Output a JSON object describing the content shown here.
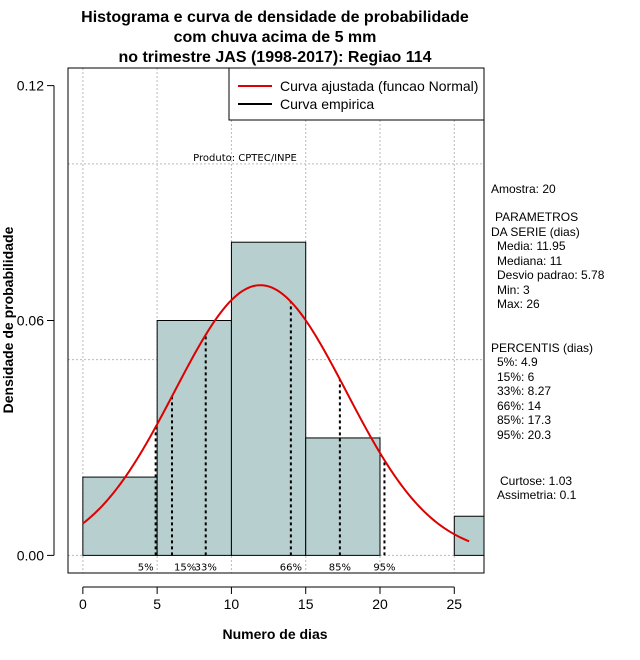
{
  "chart_data": {
    "type": "histogram",
    "title_lines": [
      "Histograma e curva de densidade de probabilidade",
      "com chuva acima de 5 mm",
      "no trimestre JAS (1998-2017): Regiao 114"
    ],
    "xlabel": "Numero de dias",
    "ylabel": "Densidade de probabilidade",
    "xlim": [
      -1,
      27
    ],
    "ylim": [
      -0.0045,
      0.1245
    ],
    "x_ticks": [
      0,
      5,
      10,
      15,
      20,
      25
    ],
    "y_ticks": [
      0.0,
      0.06,
      0.12
    ],
    "y_tick_labels": [
      "0.00",
      "0.06",
      "0.12"
    ],
    "grid_x": [
      0,
      5,
      10,
      15,
      20,
      25
    ],
    "grid_y": [
      0.0,
      0.05,
      0.1
    ],
    "bins": [
      {
        "start": 0,
        "end": 5,
        "density": 0.02
      },
      {
        "start": 5,
        "end": 10,
        "density": 0.06
      },
      {
        "start": 10,
        "end": 15,
        "density": 0.08
      },
      {
        "start": 15,
        "end": 20,
        "density": 0.03
      },
      {
        "start": 20,
        "end": 25,
        "density": 0.0
      },
      {
        "start": 25,
        "end": 27,
        "density": 0.01
      }
    ],
    "bar_color": "#b8cfcf",
    "normal_fit": {
      "mean": 11.95,
      "sd": 5.78,
      "x_from": 0,
      "x_to": 26,
      "color": "#dd0000"
    },
    "percentiles": [
      {
        "label": "5%",
        "value": 4.9
      },
      {
        "label": "15%",
        "value": 6
      },
      {
        "label": "33%",
        "value": 8.27
      },
      {
        "label": "66%",
        "value": 14
      },
      {
        "label": "85%",
        "value": 17.3
      },
      {
        "label": "95%",
        "value": 20.3
      }
    ],
    "legend": [
      {
        "label": "Curva ajustada (funcao Normal)",
        "color": "#dd0000"
      },
      {
        "label": "Curva empirica",
        "color": "#000000"
      }
    ],
    "watermark": "Produto: CPTEC/INPE",
    "stats": {
      "amostra": "Amostra: 20",
      "param_header": [
        "PARAMETROS",
        "DA SERIE (dias)"
      ],
      "params": [
        "Media: 11.95",
        "Mediana: 11",
        "Desvio padrao: 5.78",
        "Min: 3",
        "Max: 26"
      ],
      "percentis_header": "PERCENTIS (dias)",
      "percentis": [
        "5%: 4.9",
        "15%: 6",
        "33%: 8.27",
        "66%: 14",
        "85%: 17.3",
        "95%: 20.3"
      ],
      "curtose": "Curtose: 1.03",
      "assimetria": "Assimetria: 0.1"
    }
  }
}
